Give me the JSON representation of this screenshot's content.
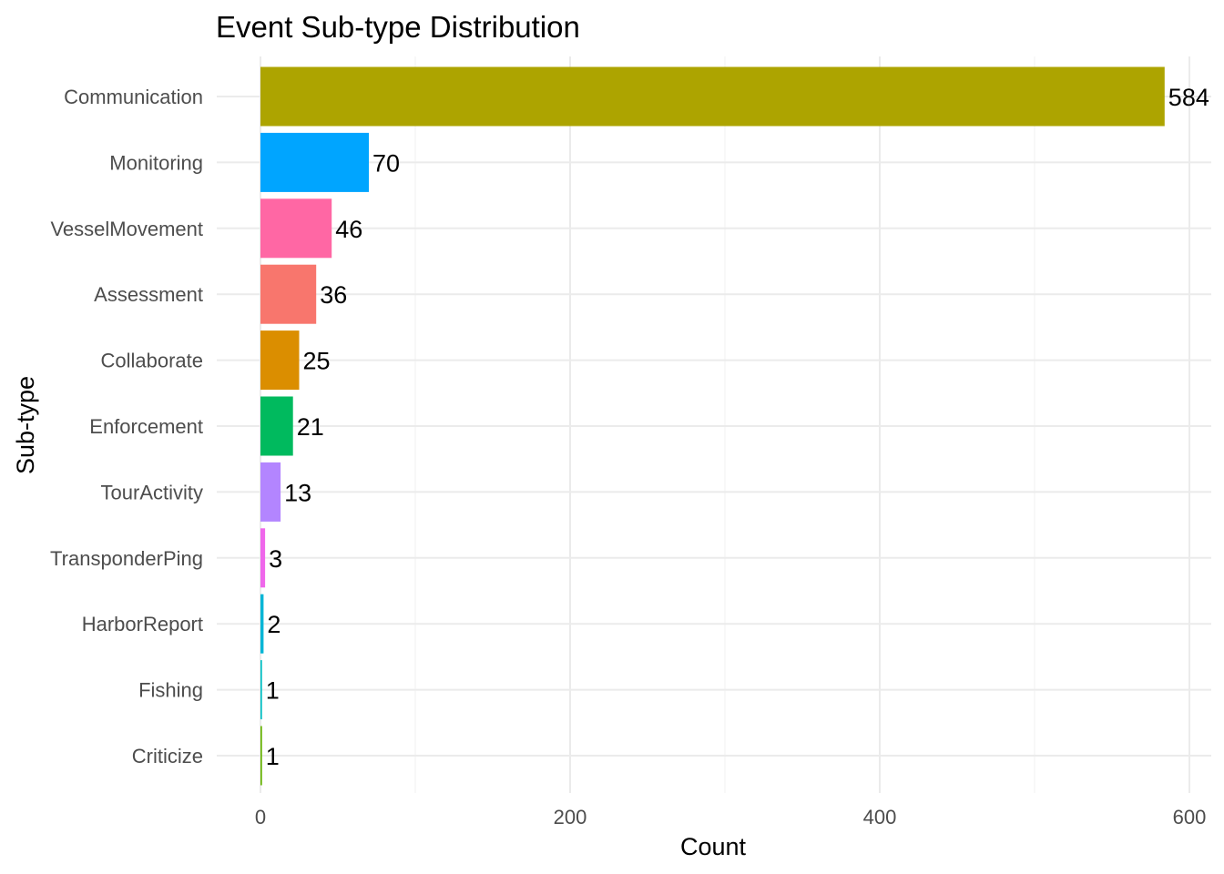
{
  "chart_data": {
    "type": "bar",
    "orientation": "horizontal",
    "title": "Event Sub-type Distribution",
    "xlabel": "Count",
    "ylabel": "Sub-type",
    "xlim": [
      0,
      600
    ],
    "x_ticks": [
      0,
      200,
      400,
      600
    ],
    "grid": true,
    "legend": "none",
    "categories": [
      "Communication",
      "Monitoring",
      "VesselMovement",
      "Assessment",
      "Collaborate",
      "Enforcement",
      "TourActivity",
      "TransponderPing",
      "HarborReport",
      "Fishing",
      "Criticize"
    ],
    "values": [
      584,
      70,
      46,
      36,
      25,
      21,
      13,
      3,
      2,
      1,
      1
    ],
    "colors": [
      "#ADA400",
      "#00A5FF",
      "#FF67A4",
      "#F8766D",
      "#DB8E00",
      "#00BA5E",
      "#B385FF",
      "#EF67EB",
      "#00B5D6",
      "#00BFC4",
      "#64B200"
    ]
  }
}
